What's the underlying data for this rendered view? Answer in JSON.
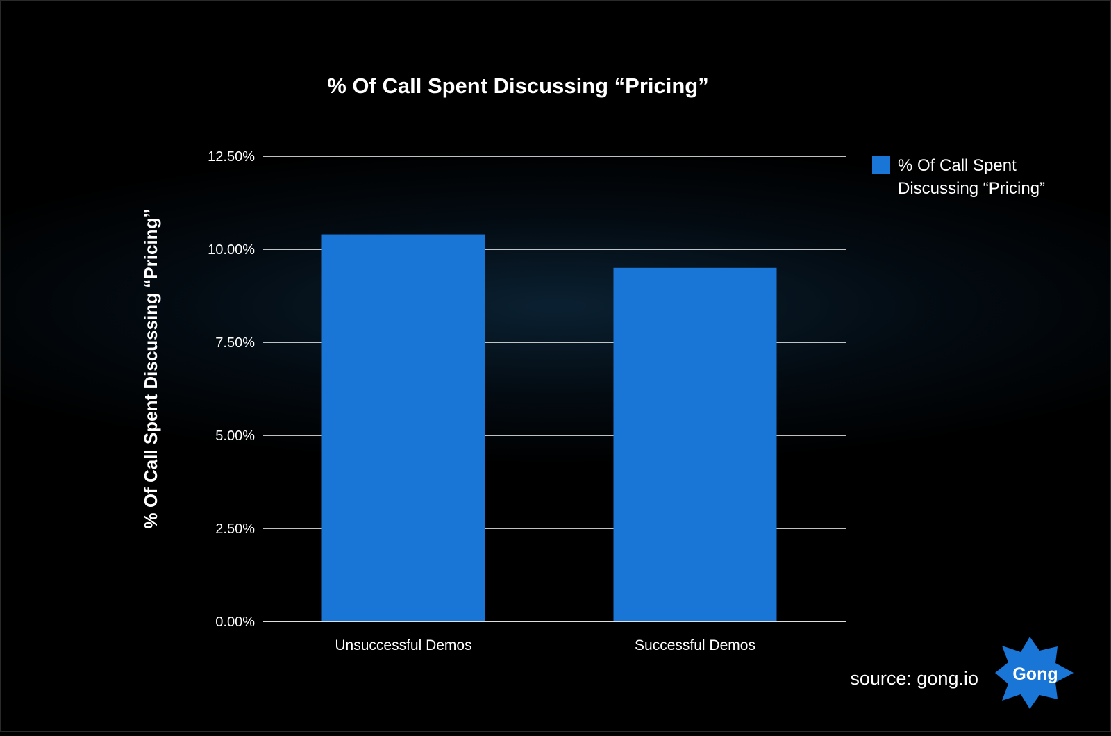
{
  "chart_data": {
    "type": "bar",
    "title": "% Of Call Spent Discussing “Pricing”",
    "ylabel": "% Of Call Spent Discussing “Pricing”",
    "xlabel": "",
    "categories": [
      "Unsuccessful Demos",
      "Successful Demos"
    ],
    "series": [
      {
        "name": "% Of Call Spent Discussing “Pricing”",
        "values": [
          10.4,
          9.5
        ]
      }
    ],
    "ylim": [
      0,
      12.5
    ],
    "yticks": [
      0,
      2.5,
      5,
      7.5,
      10,
      12.5
    ],
    "ytick_labels": [
      "0.00%",
      "2.50%",
      "5.00%",
      "7.50%",
      "10.00%",
      "12.50%"
    ],
    "grid": true,
    "legend_position": "top-right",
    "legend_lines": [
      "% Of Call Spent",
      "Discussing “Pricing”"
    ]
  },
  "colors": {
    "bar": "#1976d6",
    "grid": "#ffffff",
    "text": "#ffffff",
    "logo_badge": "#1976d6"
  },
  "footer": {
    "source": "source: gong.io",
    "logo_text": "Gong"
  }
}
